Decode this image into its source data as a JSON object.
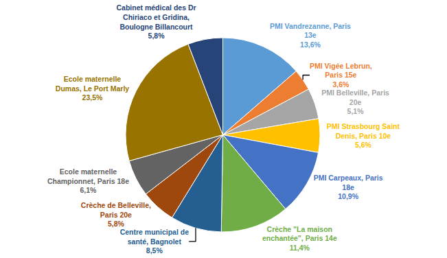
{
  "chart_data": {
    "type": "pie",
    "categories": [
      "PMI Vandrezanne, Paris 13e",
      "PMI Vigée Lebrun, Paris 15e",
      "PMI Belleville, Paris 20e",
      "PMI Strasbourg Saint Denis, Paris 10e",
      "PMI Carpeaux, Paris 18e",
      "Crèche \"La maison enchantée\", Paris 14e",
      "Centre municipal de santé, Bagnolet",
      "Crèche de Belleville, Paris 20e",
      "Ecole maternelle Championnet, Paris 18e",
      "Ecole maternelle Dumas, Le Port Marly",
      "Cabinet médical des Dr Chiriaco et Gridina, Boulogne Billancourt"
    ],
    "values": [
      13.6,
      3.6,
      5.1,
      5.6,
      10.9,
      11.4,
      8.5,
      5.8,
      6.1,
      23.5,
      5.8
    ],
    "value_labels": [
      "13,6%",
      "3,6%",
      "5,1%",
      "5,6%",
      "10,9%",
      "11,4%",
      "8,5%",
      "5,8%",
      "6,1%",
      "23,5%",
      "5,8%"
    ],
    "colors": [
      "#5B9BD5",
      "#ED7D31",
      "#A5A5A5",
      "#FFC000",
      "#4472C4",
      "#70AD47",
      "#255E91",
      "#9E480E",
      "#636363",
      "#997300",
      "#264478"
    ],
    "data_labels": true
  }
}
